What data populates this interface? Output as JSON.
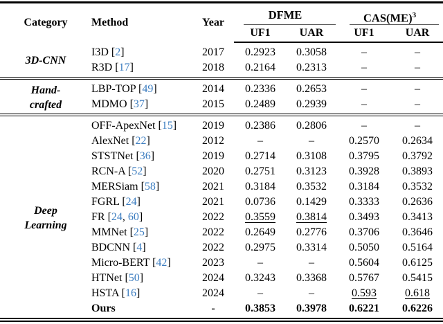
{
  "colors": {
    "cite_link": "#3c7dc0",
    "rule_gray": "#5a5a5a",
    "text": "#000000"
  },
  "table": {
    "header": {
      "category": "Category",
      "method": "Method",
      "year": "Year",
      "group_dfme": "DFME",
      "group_casme": "CAS(ME)",
      "group_casme_sup": "3",
      "sub_dfme_uf1": "UF1",
      "sub_dfme_uar": "UAR",
      "sub_casme_uf1": "UF1",
      "sub_casme_uar": "UAR"
    },
    "sections": [
      {
        "category_lines": [
          "3D-CNN"
        ],
        "rows": [
          {
            "method": "I3D",
            "cites": [
              "2"
            ],
            "year": "2017",
            "values": [
              "0.2923",
              "0.3058",
              "–",
              "–"
            ]
          },
          {
            "method": "R3D",
            "cites": [
              "17"
            ],
            "year": "2018",
            "values": [
              "0.2164",
              "0.2313",
              "–",
              "–"
            ]
          }
        ]
      },
      {
        "category_lines": [
          "Hand-",
          "crafted"
        ],
        "rows": [
          {
            "method": "LBP-TOP",
            "cites": [
              "49"
            ],
            "year": "2014",
            "values": [
              "0.2336",
              "0.2653",
              "–",
              "–"
            ]
          },
          {
            "method": "MDMO",
            "cites": [
              "37"
            ],
            "year": "2015",
            "values": [
              "0.2489",
              "0.2939",
              "–",
              "–"
            ]
          }
        ]
      },
      {
        "category_lines": [
          "Deep",
          "Learning"
        ],
        "rows": [
          {
            "method": "OFF-ApexNet",
            "cites": [
              "15"
            ],
            "year": "2019",
            "values": [
              "0.2386",
              "0.2806",
              "–",
              "–"
            ]
          },
          {
            "method": "AlexNet",
            "cites": [
              "22"
            ],
            "year": "2012",
            "values": [
              "–",
              "–",
              "0.2570",
              "0.2634"
            ]
          },
          {
            "method": "STSTNet",
            "cites": [
              "36"
            ],
            "year": "2019",
            "values": [
              "0.2714",
              "0.3108",
              "0.3795",
              "0.3792"
            ]
          },
          {
            "method": "RCN-A",
            "cites": [
              "52"
            ],
            "year": "2020",
            "values": [
              "0.2751",
              "0.3123",
              "0.3928",
              "0.3893"
            ]
          },
          {
            "method": "MERSiam",
            "cites": [
              "58"
            ],
            "year": "2021",
            "values": [
              "0.3184",
              "0.3532",
              "0.3184",
              "0.3532"
            ]
          },
          {
            "method": "FGRL",
            "cites": [
              "24"
            ],
            "year": "2021",
            "values": [
              "0.0736",
              "0.1429",
              "0.3333",
              "0.2636"
            ]
          },
          {
            "method": "FR",
            "cites": [
              "24",
              "60"
            ],
            "year": "2022",
            "values": [
              "0.3559",
              "0.3814",
              "0.3493",
              "0.3413"
            ],
            "underline": [
              0,
              1
            ]
          },
          {
            "method": "MMNet",
            "cites": [
              "25"
            ],
            "year": "2022",
            "values": [
              "0.2649",
              "0.2776",
              "0.3706",
              "0.3646"
            ]
          },
          {
            "method": "BDCNN",
            "cites": [
              "4"
            ],
            "year": "2022",
            "values": [
              "0.2975",
              "0.3314",
              "0.5050",
              "0.5164"
            ]
          },
          {
            "method": "Micro-BERT",
            "cites": [
              "42"
            ],
            "year": "2023",
            "values": [
              "–",
              "–",
              "0.5604",
              "0.6125"
            ]
          },
          {
            "method": "HTNet",
            "cites": [
              "50"
            ],
            "year": "2024",
            "values": [
              "0.3243",
              "0.3368",
              "0.5767",
              "0.5415"
            ]
          },
          {
            "method": "HSTA",
            "cites": [
              "16"
            ],
            "year": "2024",
            "values": [
              "–",
              "–",
              "0.593",
              "0.618"
            ],
            "underline": [
              2,
              3
            ]
          },
          {
            "method": "Ours",
            "cites": [],
            "year": "-",
            "values": [
              "0.3853",
              "0.3978",
              "0.6221",
              "0.6226"
            ],
            "bold": true
          }
        ]
      }
    ]
  }
}
